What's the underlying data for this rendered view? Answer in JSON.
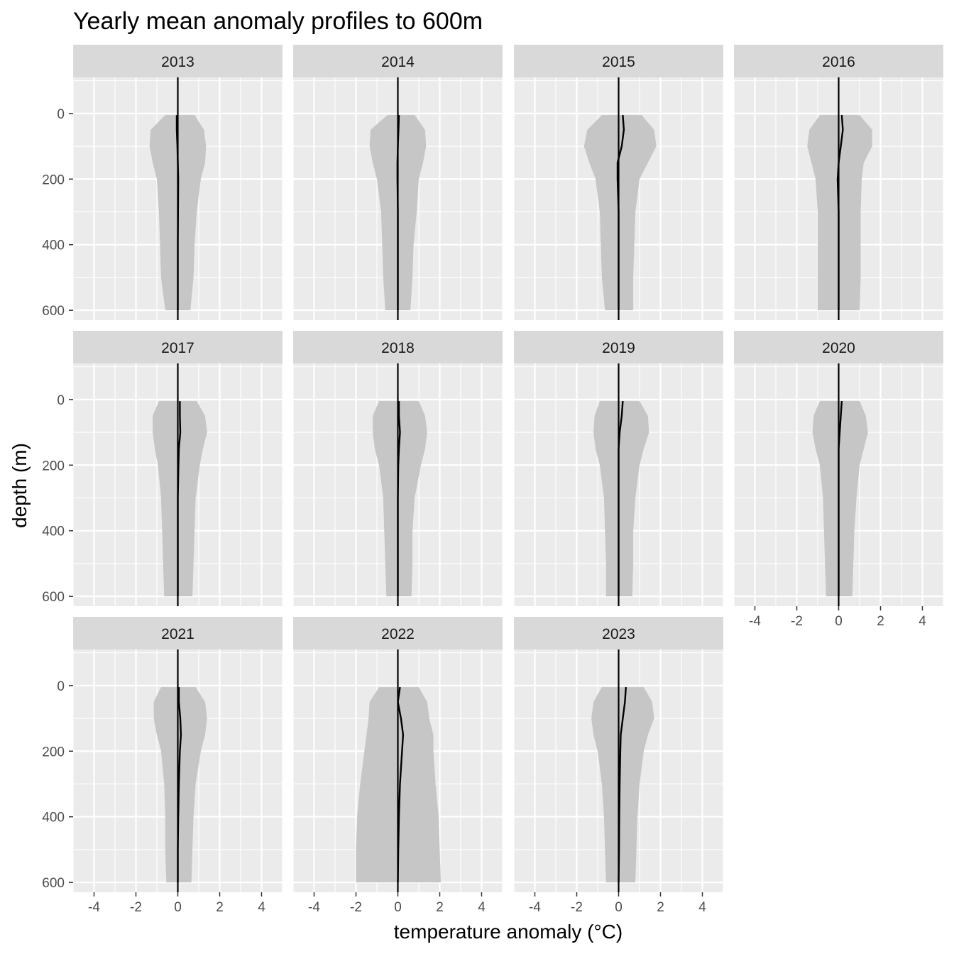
{
  "chart_data": {
    "type": "area",
    "title": "Yearly mean anomaly profiles to 600m",
    "xlabel": "temperature anomaly (°C)",
    "ylabel": "depth (m)",
    "xlim": [
      -5,
      5
    ],
    "ylim": [
      630,
      -110
    ],
    "x_ticks": [
      -4,
      -2,
      0,
      2,
      4
    ],
    "y_ticks": [
      0,
      200,
      400,
      600
    ],
    "x_tick_labels": [
      "-4",
      "-2",
      "0",
      "2",
      "4"
    ],
    "y_tick_labels": [
      "0",
      "200",
      "400",
      "600"
    ],
    "depths": [
      5,
      50,
      100,
      150,
      200,
      300,
      400,
      500,
      600
    ],
    "grid": true,
    "y_reversed": true,
    "colors": {
      "panel_background": "#ebebeb",
      "strip_background": "#d9d9d9",
      "grid_line": "#ffffff",
      "band_fill": "#c6c6c6",
      "mean_line": "#000000"
    },
    "panels": [
      {
        "year": "2013",
        "lower": [
          -0.6,
          -1.3,
          -1.35,
          -1.2,
          -1.0,
          -0.9,
          -0.85,
          -0.8,
          -0.6
        ],
        "upper": [
          0.8,
          1.25,
          1.35,
          1.3,
          1.1,
          0.9,
          0.8,
          0.75,
          0.6
        ],
        "mean": [
          -0.05,
          -0.05,
          -0.02,
          0.0,
          0.02,
          0.01,
          0.0,
          0.0,
          0.0
        ]
      },
      {
        "year": "2014",
        "lower": [
          -0.5,
          -1.3,
          -1.35,
          -1.2,
          -1.0,
          -0.8,
          -0.75,
          -0.7,
          -0.6
        ],
        "upper": [
          0.8,
          1.3,
          1.35,
          1.2,
          1.0,
          0.9,
          0.75,
          0.7,
          0.6
        ],
        "mean": [
          0.05,
          0.03,
          0.0,
          -0.02,
          -0.02,
          0.0,
          0.0,
          0.0,
          0.0
        ]
      },
      {
        "year": "2015",
        "lower": [
          -0.8,
          -1.5,
          -1.65,
          -1.4,
          -1.1,
          -0.9,
          -0.85,
          -0.8,
          -0.65
        ],
        "upper": [
          1.1,
          1.7,
          1.8,
          1.4,
          1.0,
          0.8,
          0.75,
          0.7,
          0.7
        ],
        "mean": [
          0.2,
          0.25,
          0.15,
          -0.05,
          -0.05,
          0.0,
          0.0,
          0.0,
          0.0
        ]
      },
      {
        "year": "2016",
        "lower": [
          -0.9,
          -1.4,
          -1.5,
          -1.3,
          -1.1,
          -1.0,
          -1.0,
          -1.0,
          -1.0
        ],
        "upper": [
          1.0,
          1.6,
          1.6,
          1.2,
          1.1,
          1.05,
          1.05,
          1.05,
          1.0
        ],
        "mean": [
          0.15,
          0.2,
          0.1,
          0.0,
          -0.05,
          0.0,
          0.0,
          0.0,
          0.0
        ]
      },
      {
        "year": "2017",
        "lower": [
          -0.9,
          -1.2,
          -1.2,
          -1.1,
          -0.95,
          -0.8,
          -0.75,
          -0.7,
          -0.65
        ],
        "upper": [
          0.9,
          1.3,
          1.4,
          1.2,
          1.05,
          0.85,
          0.8,
          0.75,
          0.7
        ],
        "mean": [
          0.1,
          0.1,
          0.12,
          0.05,
          0.03,
          0.0,
          0.0,
          0.0,
          0.0
        ]
      },
      {
        "year": "2018",
        "lower": [
          -0.9,
          -1.2,
          -1.2,
          -1.1,
          -0.9,
          -0.7,
          -0.65,
          -0.6,
          -0.55
        ],
        "upper": [
          1.0,
          1.3,
          1.4,
          1.3,
          1.1,
          0.8,
          0.7,
          0.7,
          0.65
        ],
        "mean": [
          0.05,
          0.05,
          0.1,
          0.05,
          0.02,
          0.0,
          0.0,
          0.0,
          0.0
        ]
      },
      {
        "year": "2019",
        "lower": [
          -0.9,
          -1.15,
          -1.2,
          -1.1,
          -0.9,
          -0.7,
          -0.65,
          -0.6,
          -0.6
        ],
        "upper": [
          1.0,
          1.4,
          1.45,
          1.2,
          1.0,
          0.8,
          0.7,
          0.7,
          0.65
        ],
        "mean": [
          0.2,
          0.15,
          0.05,
          0.0,
          0.0,
          0.0,
          0.0,
          0.0,
          0.0
        ]
      },
      {
        "year": "2020",
        "lower": [
          -0.9,
          -1.2,
          -1.25,
          -1.1,
          -0.9,
          -0.75,
          -0.7,
          -0.65,
          -0.6
        ],
        "upper": [
          1.0,
          1.3,
          1.4,
          1.2,
          1.0,
          0.85,
          0.75,
          0.7,
          0.65
        ],
        "mean": [
          0.15,
          0.1,
          0.05,
          0.0,
          0.0,
          0.0,
          0.0,
          0.0,
          0.0
        ]
      },
      {
        "year": "2021",
        "lower": [
          -0.8,
          -1.15,
          -1.15,
          -1.0,
          -0.8,
          -0.65,
          -0.6,
          -0.6,
          -0.55
        ],
        "upper": [
          0.85,
          1.3,
          1.4,
          1.3,
          1.1,
          0.85,
          0.75,
          0.7,
          0.65
        ],
        "mean": [
          0.05,
          0.05,
          0.12,
          0.15,
          0.1,
          0.05,
          0.02,
          0.0,
          0.0
        ]
      },
      {
        "year": "2022",
        "lower": [
          -0.9,
          -1.35,
          -1.4,
          -1.5,
          -1.6,
          -1.8,
          -1.95,
          -2.0,
          -2.0
        ],
        "upper": [
          1.0,
          1.4,
          1.5,
          1.7,
          1.7,
          1.8,
          1.95,
          2.0,
          2.05
        ],
        "mean": [
          0.1,
          0.0,
          0.15,
          0.25,
          0.2,
          0.1,
          0.05,
          0.02,
          0.0
        ]
      },
      {
        "year": "2023",
        "lower": [
          -0.8,
          -1.2,
          -1.3,
          -1.2,
          -1.0,
          -0.8,
          -0.7,
          -0.65,
          -0.6
        ],
        "upper": [
          1.2,
          1.6,
          1.7,
          1.4,
          1.2,
          1.0,
          0.9,
          0.85,
          0.8
        ],
        "mean": [
          0.35,
          0.3,
          0.2,
          0.1,
          0.08,
          0.05,
          0.03,
          0.02,
          0.0
        ]
      }
    ]
  }
}
